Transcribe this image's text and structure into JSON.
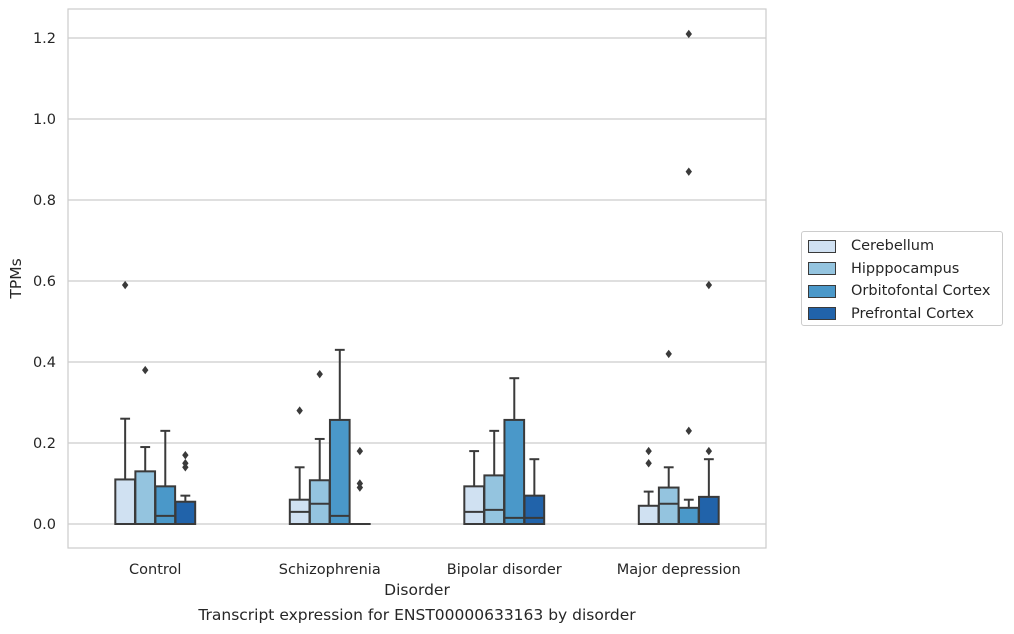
{
  "chart_data": {
    "type": "box",
    "title": "",
    "caption": "Transcript expression for ENST00000633163 by disorder",
    "xlabel": "Disorder",
    "ylabel": "TPMs",
    "ylim": [
      -0.06,
      1.27
    ],
    "yticks": [
      0.0,
      0.2,
      0.4,
      0.6,
      0.8,
      1.0,
      1.2
    ],
    "ytick_labels": [
      "0.0",
      "0.2",
      "0.4",
      "0.6",
      "0.8",
      "1.0",
      "1.2"
    ],
    "grid": "horizontal",
    "legend_position": "right",
    "categories": [
      "Control",
      "Schizophrenia",
      "Bipolar disorder",
      "Major depression"
    ],
    "series": [
      {
        "name": "Cerebellum",
        "color": "#d0e1f2",
        "boxes": [
          {
            "q1": 0.0,
            "median": 0.0,
            "q3": 0.11,
            "whislo": 0.0,
            "whishi": 0.26,
            "fliers": [
              0.59
            ]
          },
          {
            "q1": 0.0,
            "median": 0.03,
            "q3": 0.06,
            "whislo": 0.0,
            "whishi": 0.14,
            "fliers": [
              0.28
            ]
          },
          {
            "q1": 0.0,
            "median": 0.03,
            "q3": 0.093,
            "whislo": 0.0,
            "whishi": 0.18,
            "fliers": []
          },
          {
            "q1": 0.0,
            "median": 0.0,
            "q3": 0.045,
            "whislo": 0.0,
            "whishi": 0.08,
            "fliers": [
              0.15,
              0.18
            ]
          }
        ]
      },
      {
        "name": "Hipppocampus",
        "color": "#94c4df",
        "boxes": [
          {
            "q1": 0.0,
            "median": 0.0,
            "q3": 0.13,
            "whislo": 0.0,
            "whishi": 0.19,
            "fliers": [
              0.38
            ]
          },
          {
            "q1": 0.0,
            "median": 0.05,
            "q3": 0.108,
            "whislo": 0.0,
            "whishi": 0.21,
            "fliers": [
              0.37
            ]
          },
          {
            "q1": 0.0,
            "median": 0.035,
            "q3": 0.12,
            "whislo": 0.0,
            "whishi": 0.23,
            "fliers": []
          },
          {
            "q1": 0.0,
            "median": 0.05,
            "q3": 0.09,
            "whislo": 0.0,
            "whishi": 0.14,
            "fliers": [
              0.42
            ]
          }
        ]
      },
      {
        "name": "Orbitofontal Cortex",
        "color": "#4a98c9",
        "boxes": [
          {
            "q1": 0.0,
            "median": 0.02,
            "q3": 0.093,
            "whislo": 0.0,
            "whishi": 0.23,
            "fliers": []
          },
          {
            "q1": 0.0,
            "median": 0.02,
            "q3": 0.257,
            "whislo": 0.0,
            "whishi": 0.43,
            "fliers": []
          },
          {
            "q1": 0.0,
            "median": 0.015,
            "q3": 0.257,
            "whislo": 0.0,
            "whishi": 0.36,
            "fliers": []
          },
          {
            "q1": 0.0,
            "median": 0.0,
            "q3": 0.04,
            "whislo": 0.0,
            "whishi": 0.06,
            "fliers": [
              0.23,
              0.87,
              1.21
            ]
          }
        ]
      },
      {
        "name": "Prefrontal Cortex",
        "color": "#2163aa",
        "boxes": [
          {
            "q1": 0.0,
            "median": 0.0,
            "q3": 0.055,
            "whislo": 0.0,
            "whishi": 0.07,
            "fliers": [
              0.14,
              0.15,
              0.17
            ]
          },
          {
            "q1": 0.0,
            "median": 0.0,
            "q3": 0.0,
            "whislo": 0.0,
            "whishi": 0.0,
            "fliers": [
              0.09,
              0.1,
              0.18
            ]
          },
          {
            "q1": 0.0,
            "median": 0.015,
            "q3": 0.07,
            "whislo": 0.0,
            "whishi": 0.16,
            "fliers": []
          },
          {
            "q1": 0.0,
            "median": 0.0,
            "q3": 0.067,
            "whislo": 0.0,
            "whishi": 0.16,
            "fliers": [
              0.18,
              0.59
            ]
          }
        ]
      }
    ]
  },
  "style": {
    "edge_color": "#3a3a3a",
    "grid_color": "#cccccc",
    "frame_color": "#cccccc",
    "text_color": "#262626"
  }
}
